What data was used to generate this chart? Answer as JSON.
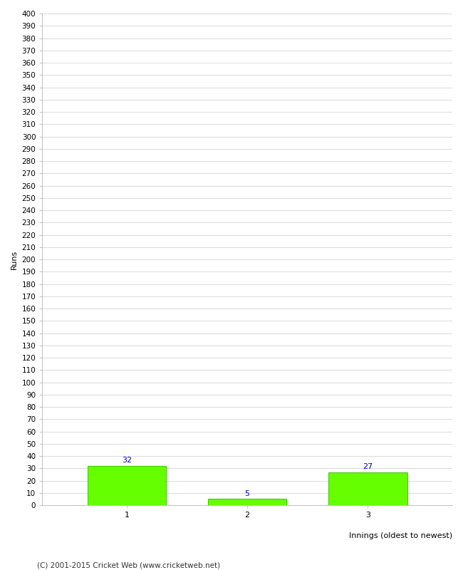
{
  "categories": [
    "1",
    "2",
    "3"
  ],
  "values": [
    32,
    5,
    27
  ],
  "bar_color": "#66ff00",
  "bar_edge_color": "#44cc00",
  "label_color": "#0000cc",
  "title": "",
  "ylabel": "Runs",
  "xlabel": "Innings (oldest to newest)",
  "ylim": [
    0,
    400
  ],
  "ytick_step": 10,
  "background_color": "#ffffff",
  "grid_color": "#cccccc",
  "footer": "(C) 2001-2015 Cricket Web (www.cricketweb.net)",
  "figsize": [
    6.5,
    8.0
  ],
  "dpi": 100
}
